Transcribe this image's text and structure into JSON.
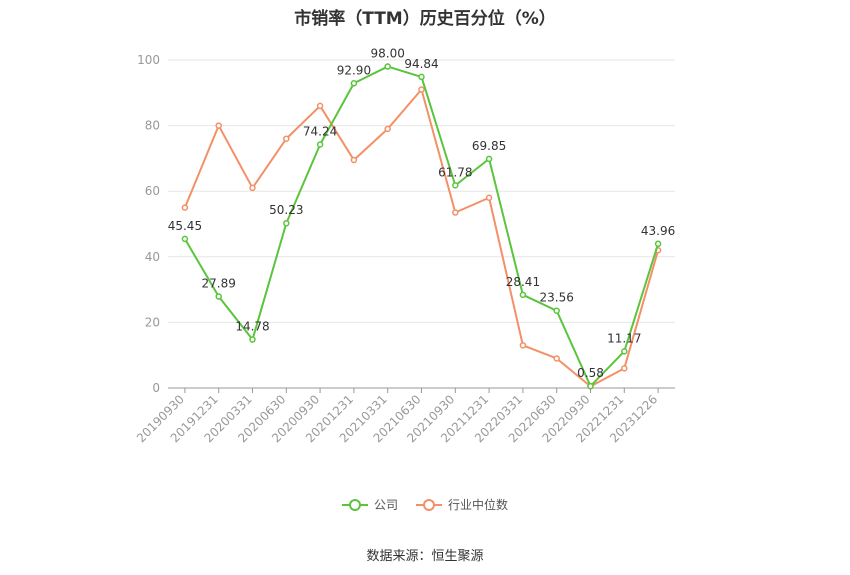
{
  "chart_data": {
    "type": "line",
    "title": "市销率（TTM）历史百分位（%）",
    "categories": [
      "20190930",
      "20191231",
      "20200331",
      "20200630",
      "20200930",
      "20201231",
      "20210331",
      "20210630",
      "20210930",
      "20211231",
      "20220331",
      "20220630",
      "20220930",
      "20221231",
      "20231226"
    ],
    "series": [
      {
        "name": "公司",
        "color": "#5ac43c",
        "values": [
          45.45,
          27.89,
          14.78,
          50.23,
          74.24,
          92.9,
          98.0,
          94.84,
          61.78,
          69.85,
          28.41,
          23.56,
          0.58,
          11.17,
          43.96
        ],
        "labels": [
          "45.45",
          "27.89",
          "14.78",
          "50.23",
          "74.24",
          "92.90",
          "98.00",
          "94.84",
          "61.78",
          "69.85",
          "28.41",
          "23.56",
          "0.58",
          "11.17",
          "43.96"
        ]
      },
      {
        "name": "行业中位数",
        "color": "#f39067",
        "values": [
          55,
          80,
          61,
          76,
          86,
          69.5,
          79,
          91,
          53.5,
          58,
          13,
          9,
          0.5,
          6,
          42
        ]
      }
    ],
    "ylim": [
      0,
      100
    ],
    "yticks": [
      "0",
      "20",
      "40",
      "60",
      "80",
      "100"
    ],
    "grid": true,
    "legend_position": "bottom"
  },
  "source": "数据来源：恒生聚源"
}
